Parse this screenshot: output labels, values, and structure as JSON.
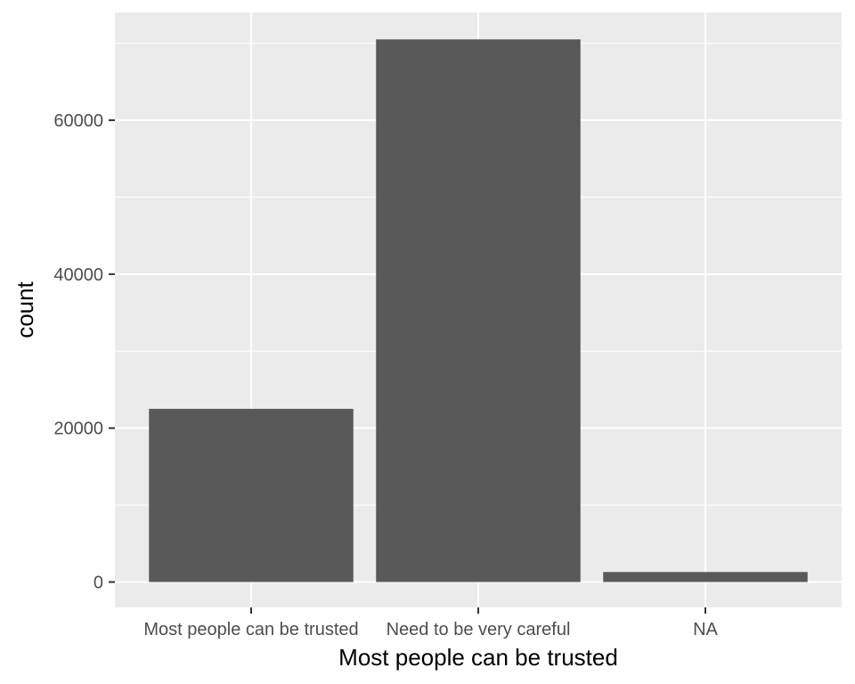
{
  "chart_data": {
    "type": "bar",
    "categories": [
      "Most people can be trusted",
      "Need to be very careful",
      "NA"
    ],
    "values": [
      22500,
      70500,
      1300
    ],
    "title": "",
    "xlabel": "Most people can be trusted",
    "ylabel": "count",
    "ylim": [
      -3300,
      74000
    ],
    "yticks": [
      0,
      20000,
      40000,
      60000
    ],
    "ytick_labels": [
      "0",
      "20000",
      "40000",
      "60000"
    ],
    "grid": true,
    "legend": "none",
    "colors": {
      "panel": "#ebebeb",
      "grid_major": "#ffffff",
      "bar": "#595959",
      "tick_text": "#4d4d4d",
      "tick_mark": "#333333"
    }
  }
}
